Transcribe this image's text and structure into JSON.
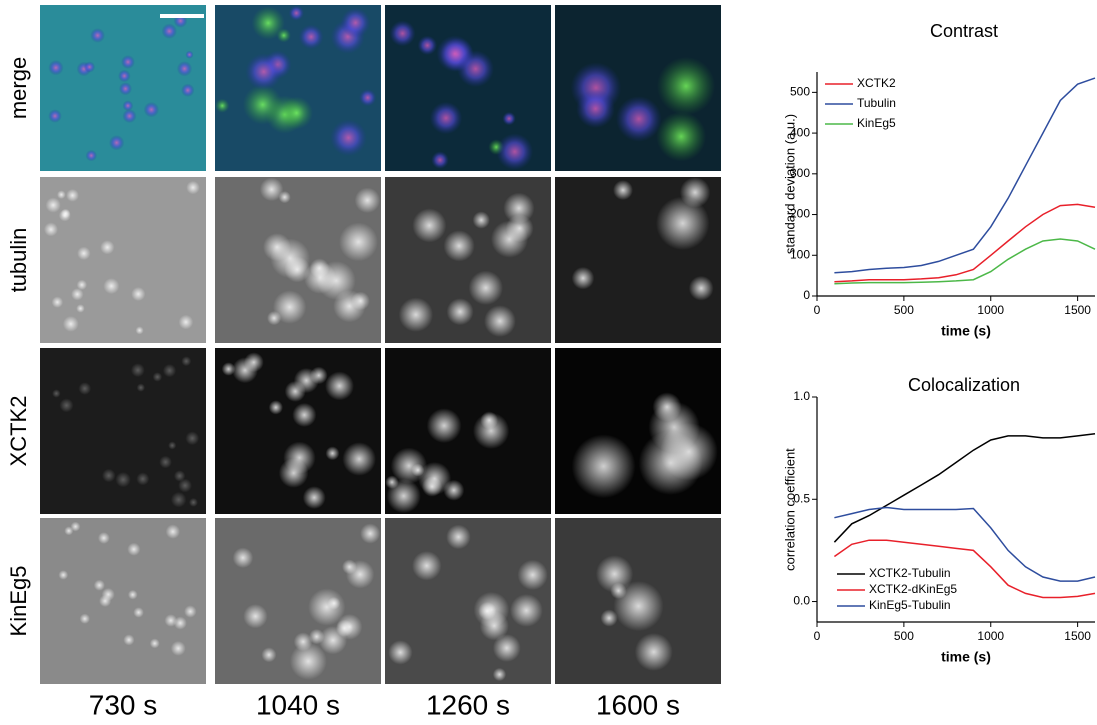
{
  "panels": {
    "rows": [
      "merge",
      "tubulin",
      "XCTK2",
      "KinEg5"
    ],
    "columns": [
      "730 s",
      "1040 s",
      "1260 s",
      "1600 s"
    ]
  },
  "chart_data": [
    {
      "type": "line",
      "title": "Contrast",
      "xlabel": "time (s)",
      "ylabel": "standard deviation (a.u.)",
      "x": [
        100,
        200,
        300,
        400,
        500,
        600,
        700,
        800,
        900,
        1000,
        1100,
        1200,
        1300,
        1400,
        1500,
        1600
      ],
      "xlim": [
        0,
        1600
      ],
      "xticks": [
        0,
        500,
        1000,
        1500
      ],
      "ylim": [
        0,
        550
      ],
      "yticks": [
        0,
        100,
        200,
        300,
        400,
        500
      ],
      "legend": "upper left",
      "series": [
        {
          "name": "XCTK2",
          "color": "#e8202a",
          "values": [
            35,
            37,
            40,
            40,
            40,
            42,
            45,
            52,
            65,
            100,
            135,
            170,
            200,
            222,
            225,
            218
          ]
        },
        {
          "name": "Tubulin",
          "color": "#2e4d9e",
          "values": [
            57,
            60,
            65,
            68,
            70,
            75,
            85,
            100,
            115,
            170,
            240,
            320,
            400,
            480,
            520,
            535
          ]
        },
        {
          "name": "KinEg5",
          "color": "#4cb848",
          "values": [
            30,
            32,
            33,
            33,
            33,
            34,
            35,
            37,
            40,
            60,
            90,
            115,
            135,
            140,
            135,
            115
          ]
        }
      ]
    },
    {
      "type": "line",
      "title": "Colocalization",
      "xlabel": "time (s)",
      "ylabel": "correlation coefficient",
      "x": [
        100,
        200,
        300,
        400,
        500,
        600,
        700,
        800,
        900,
        1000,
        1100,
        1200,
        1300,
        1400,
        1500,
        1600
      ],
      "xlim": [
        0,
        1600
      ],
      "xticks": [
        0,
        500,
        1000,
        1500
      ],
      "ylim": [
        -0.1,
        1.0
      ],
      "yticks": [
        {
          "value": 0,
          "label": "0.0"
        },
        0.5,
        {
          "value": 1,
          "label": "1.0"
        }
      ],
      "legend": "lower left",
      "series": [
        {
          "name": "XCTK2-Tubulin",
          "color": "#000000",
          "values": [
            0.29,
            0.38,
            0.42,
            0.47,
            0.52,
            0.57,
            0.62,
            0.68,
            0.74,
            0.79,
            0.81,
            0.81,
            0.8,
            0.8,
            0.81,
            0.82
          ]
        },
        {
          "name": "XCTK2-dKinEg5",
          "color": "#e8202a",
          "values": [
            0.22,
            0.28,
            0.3,
            0.3,
            0.29,
            0.28,
            0.27,
            0.26,
            0.25,
            0.17,
            0.08,
            0.04,
            0.02,
            0.02,
            0.025,
            0.04
          ]
        },
        {
          "name": "KinEg5-Tubulin",
          "color": "#2e4d9e",
          "values": [
            0.41,
            0.43,
            0.45,
            0.46,
            0.45,
            0.45,
            0.45,
            0.45,
            0.455,
            0.36,
            0.25,
            0.17,
            0.12,
            0.1,
            0.1,
            0.12
          ]
        }
      ]
    }
  ]
}
